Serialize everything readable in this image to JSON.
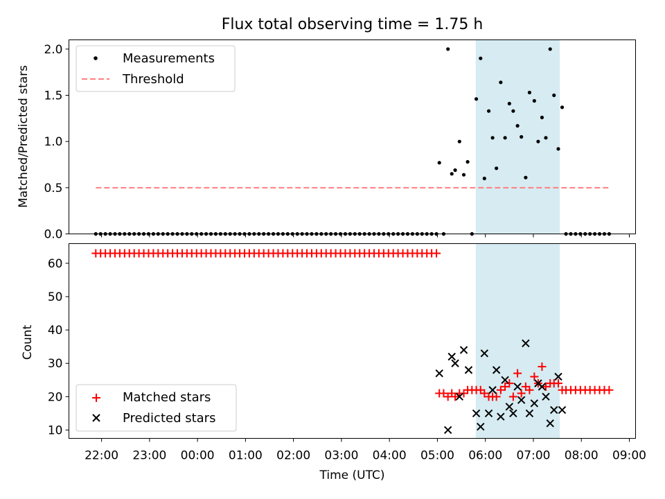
{
  "title": "Flux total observing time = 1.75 h",
  "colors": {
    "measurement": "#000000",
    "threshold": "#ff7f7f",
    "matched": "#ff0000",
    "predicted": "#000000",
    "highlight": "#add8e6"
  },
  "chart_data": [
    {
      "type": "scatter",
      "panel": "top",
      "ylabel": "Matched/Predicted stars",
      "xlabel": "",
      "xlim": [
        -0.68,
        11.13
      ],
      "ylim": [
        0,
        2.1
      ],
      "yticks": [
        0.0,
        0.5,
        1.0,
        1.5,
        2.0
      ],
      "ytick_labels": [
        "0.0",
        "0.5",
        "1.0",
        "1.5",
        "2.0"
      ],
      "highlight_span": [
        7.8,
        9.55
      ],
      "legend": {
        "location": "upper-left",
        "entries": [
          "Measurements",
          "Threshold"
        ]
      },
      "series": [
        {
          "name": "Measurements",
          "marker": "dot",
          "x": [
            -0.12,
            -0.02,
            0.08,
            0.18,
            0.28,
            0.38,
            0.48,
            0.58,
            0.68,
            0.78,
            0.88,
            0.98,
            1.08,
            1.18,
            1.28,
            1.38,
            1.48,
            1.58,
            1.68,
            1.78,
            1.88,
            1.98,
            2.08,
            2.18,
            2.28,
            2.38,
            2.48,
            2.58,
            2.68,
            2.78,
            2.88,
            2.98,
            3.08,
            3.18,
            3.28,
            3.38,
            3.48,
            3.58,
            3.68,
            3.78,
            3.88,
            3.98,
            4.08,
            4.18,
            4.28,
            4.38,
            4.48,
            4.58,
            4.68,
            4.78,
            4.88,
            4.98,
            5.08,
            5.18,
            5.28,
            5.38,
            5.48,
            5.58,
            5.68,
            5.78,
            5.88,
            5.98,
            6.08,
            6.18,
            6.28,
            6.38,
            6.48,
            6.58,
            6.68,
            6.78,
            6.88,
            6.98,
            7.04,
            7.13,
            7.22,
            7.3,
            7.37,
            7.46,
            7.55,
            7.63,
            7.72,
            7.81,
            7.9,
            7.98,
            8.07,
            8.15,
            8.23,
            8.32,
            8.41,
            8.5,
            8.58,
            8.67,
            8.75,
            8.84,
            8.92,
            9.02,
            9.1,
            9.18,
            9.26,
            9.35,
            9.43,
            9.52,
            9.6,
            9.68,
            9.78,
            9.88,
            9.98,
            10.08,
            10.18,
            10.28,
            10.38,
            10.48,
            10.58
          ],
          "y": [
            0,
            0,
            0,
            0,
            0,
            0,
            0,
            0,
            0,
            0,
            0,
            0,
            0,
            0,
            0,
            0,
            0,
            0,
            0,
            0,
            0,
            0,
            0,
            0,
            0,
            0,
            0,
            0,
            0,
            0,
            0,
            0,
            0,
            0,
            0,
            0,
            0,
            0,
            0,
            0,
            0,
            0,
            0,
            0,
            0,
            0,
            0,
            0,
            0,
            0,
            0,
            0,
            0,
            0,
            0,
            0,
            0,
            0,
            0,
            0,
            0,
            0,
            0,
            0,
            0,
            0,
            0,
            0,
            0,
            0,
            0,
            0,
            0.77,
            0,
            2.0,
            0.65,
            0.69,
            1.0,
            0.64,
            0.78,
            0,
            1.46,
            1.9,
            0.6,
            1.33,
            1.04,
            0.71,
            1.64,
            1.04,
            1.41,
            1.33,
            1.17,
            1.05,
            0.61,
            1.53,
            1.44,
            1.0,
            1.26,
            1.04,
            2.0,
            1.5,
            0.92,
            1.37,
            0,
            0,
            0,
            0,
            0,
            0,
            0,
            0,
            0,
            0
          ]
        },
        {
          "name": "Threshold",
          "marker": "dashed-line",
          "x": [
            -0.12,
            10.58
          ],
          "y": [
            0.5,
            0.5
          ]
        }
      ]
    },
    {
      "type": "scatter",
      "panel": "bottom",
      "xlabel": "Time (UTC)",
      "ylabel": "Count",
      "xlim": [
        -0.68,
        11.13
      ],
      "ylim": [
        7.5,
        65.9
      ],
      "yticks": [
        10,
        20,
        30,
        40,
        50,
        60
      ],
      "ytick_labels": [
        "10",
        "20",
        "30",
        "40",
        "50",
        "60"
      ],
      "xticks": [
        0,
        1,
        2,
        3,
        4,
        5,
        6,
        7,
        8,
        9,
        10,
        11
      ],
      "xtick_labels": [
        "22:00",
        "23:00",
        "00:00",
        "01:00",
        "02:00",
        "03:00",
        "04:00",
        "05:00",
        "06:00",
        "07:00",
        "08:00",
        "09:00"
      ],
      "highlight_span": [
        7.8,
        9.55
      ],
      "legend": {
        "location": "lower-left",
        "entries": [
          "Matched stars",
          "Predicted stars"
        ]
      },
      "series": [
        {
          "name": "Matched stars",
          "marker": "plus",
          "x": [
            -0.12,
            -0.02,
            0.08,
            0.18,
            0.28,
            0.38,
            0.48,
            0.58,
            0.68,
            0.78,
            0.88,
            0.98,
            1.08,
            1.18,
            1.28,
            1.38,
            1.48,
            1.58,
            1.68,
            1.78,
            1.88,
            1.98,
            2.08,
            2.18,
            2.28,
            2.38,
            2.48,
            2.58,
            2.68,
            2.78,
            2.88,
            2.98,
            3.08,
            3.18,
            3.28,
            3.38,
            3.48,
            3.58,
            3.68,
            3.78,
            3.88,
            3.98,
            4.08,
            4.18,
            4.28,
            4.38,
            4.48,
            4.58,
            4.68,
            4.78,
            4.88,
            4.98,
            5.08,
            5.18,
            5.28,
            5.38,
            5.48,
            5.58,
            5.68,
            5.78,
            5.88,
            5.98,
            6.08,
            6.18,
            6.28,
            6.38,
            6.48,
            6.58,
            6.68,
            6.78,
            6.88,
            6.98,
            7.04,
            7.13,
            7.22,
            7.3,
            7.37,
            7.46,
            7.55,
            7.63,
            7.72,
            7.81,
            7.9,
            7.98,
            8.07,
            8.15,
            8.23,
            8.32,
            8.41,
            8.5,
            8.58,
            8.67,
            8.75,
            8.84,
            8.92,
            9.02,
            9.1,
            9.18,
            9.26,
            9.35,
            9.43,
            9.52,
            9.6,
            9.68,
            9.78,
            9.88,
            9.98,
            10.08,
            10.18,
            10.28,
            10.38,
            10.48,
            10.58
          ],
          "y": [
            63,
            63,
            63,
            63,
            63,
            63,
            63,
            63,
            63,
            63,
            63,
            63,
            63,
            63,
            63,
            63,
            63,
            63,
            63,
            63,
            63,
            63,
            63,
            63,
            63,
            63,
            63,
            63,
            63,
            63,
            63,
            63,
            63,
            63,
            63,
            63,
            63,
            63,
            63,
            63,
            63,
            63,
            63,
            63,
            63,
            63,
            63,
            63,
            63,
            63,
            63,
            63,
            63,
            63,
            63,
            63,
            63,
            63,
            63,
            63,
            63,
            63,
            63,
            63,
            63,
            63,
            63,
            63,
            63,
            63,
            63,
            63,
            21,
            21,
            20,
            21,
            20,
            21,
            21,
            22,
            22,
            22,
            22,
            21,
            20,
            20,
            20,
            22,
            23,
            24,
            20,
            27,
            21,
            23,
            22,
            26,
            24,
            29,
            23,
            24,
            24,
            24,
            22,
            22,
            22,
            22,
            22,
            22,
            22,
            22,
            22,
            22,
            22
          ]
        },
        {
          "name": "Predicted stars",
          "marker": "x",
          "x": [
            7.04,
            7.22,
            7.3,
            7.37,
            7.46,
            7.55,
            7.65,
            7.81,
            7.9,
            7.98,
            8.07,
            8.15,
            8.23,
            8.32,
            8.41,
            8.5,
            8.58,
            8.67,
            8.75,
            8.84,
            8.92,
            9.02,
            9.1,
            9.18,
            9.26,
            9.35,
            9.43,
            9.52,
            9.6
          ],
          "y": [
            27,
            10,
            32,
            30,
            20,
            34,
            28,
            15,
            11,
            33,
            15,
            22,
            28,
            14,
            25,
            17,
            15,
            23,
            19,
            36,
            15,
            18,
            24,
            23,
            20,
            12,
            16,
            26,
            16
          ]
        }
      ]
    }
  ]
}
